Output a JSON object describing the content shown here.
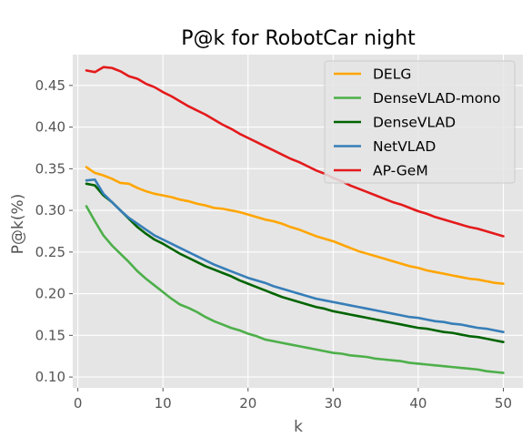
{
  "chart_data": {
    "type": "line",
    "title": "P@k for RobotCar night",
    "xlabel": "k",
    "ylabel": "P@k(%)",
    "xlim": [
      -0.6,
      52.3
    ],
    "ylim": [
      0.087,
      0.487
    ],
    "x_ticks": [
      0,
      10,
      20,
      30,
      40,
      50
    ],
    "y_ticks": [
      0.1,
      0.15,
      0.2,
      0.25,
      0.3,
      0.35,
      0.4,
      0.45
    ],
    "x_tick_labels": [
      "0",
      "10",
      "20",
      "30",
      "40",
      "50"
    ],
    "y_tick_labels": [
      "0.10",
      "0.15",
      "0.20",
      "0.25",
      "0.30",
      "0.35",
      "0.40",
      "0.45"
    ],
    "grid": true,
    "legend_position": "top-right",
    "x": [
      1,
      2,
      3,
      4,
      5,
      6,
      7,
      8,
      9,
      10,
      11,
      12,
      13,
      14,
      15,
      16,
      17,
      18,
      19,
      20,
      21,
      22,
      23,
      24,
      25,
      26,
      27,
      28,
      29,
      30,
      31,
      32,
      33,
      34,
      35,
      36,
      37,
      38,
      39,
      40,
      41,
      42,
      43,
      44,
      45,
      46,
      47,
      48,
      49,
      50
    ],
    "series": [
      {
        "name": "DELG",
        "color": "#ffa500",
        "values": [
          0.352,
          0.345,
          0.342,
          0.338,
          0.333,
          0.332,
          0.327,
          0.323,
          0.32,
          0.318,
          0.316,
          0.313,
          0.311,
          0.308,
          0.306,
          0.303,
          0.302,
          0.3,
          0.298,
          0.295,
          0.292,
          0.289,
          0.287,
          0.284,
          0.28,
          0.277,
          0.273,
          0.269,
          0.266,
          0.263,
          0.259,
          0.255,
          0.251,
          0.248,
          0.245,
          0.242,
          0.239,
          0.236,
          0.233,
          0.231,
          0.228,
          0.226,
          0.224,
          0.222,
          0.22,
          0.218,
          0.217,
          0.215,
          0.213,
          0.212
        ]
      },
      {
        "name": "DenseVLAD-mono",
        "color": "#4daf4a",
        "values": [
          0.305,
          0.287,
          0.27,
          0.258,
          0.248,
          0.238,
          0.227,
          0.218,
          0.21,
          0.202,
          0.194,
          0.187,
          0.183,
          0.178,
          0.172,
          0.167,
          0.163,
          0.159,
          0.156,
          0.152,
          0.149,
          0.145,
          0.143,
          0.141,
          0.139,
          0.137,
          0.135,
          0.133,
          0.131,
          0.129,
          0.128,
          0.126,
          0.125,
          0.124,
          0.122,
          0.121,
          0.12,
          0.119,
          0.117,
          0.116,
          0.115,
          0.114,
          0.113,
          0.112,
          0.111,
          0.11,
          0.109,
          0.107,
          0.106,
          0.105
        ]
      },
      {
        "name": "DenseVLAD",
        "color": "#006400",
        "values": [
          0.332,
          0.33,
          0.318,
          0.31,
          0.3,
          0.29,
          0.28,
          0.272,
          0.265,
          0.26,
          0.254,
          0.248,
          0.243,
          0.238,
          0.233,
          0.229,
          0.225,
          0.221,
          0.216,
          0.212,
          0.208,
          0.204,
          0.2,
          0.196,
          0.193,
          0.19,
          0.187,
          0.184,
          0.182,
          0.179,
          0.177,
          0.175,
          0.173,
          0.171,
          0.169,
          0.167,
          0.165,
          0.163,
          0.161,
          0.159,
          0.158,
          0.156,
          0.154,
          0.153,
          0.151,
          0.149,
          0.148,
          0.146,
          0.144,
          0.142
        ]
      },
      {
        "name": "NetVLAD",
        "color": "#377eb8",
        "values": [
          0.336,
          0.337,
          0.32,
          0.31,
          0.3,
          0.291,
          0.284,
          0.277,
          0.27,
          0.265,
          0.26,
          0.255,
          0.25,
          0.245,
          0.24,
          0.235,
          0.231,
          0.227,
          0.223,
          0.219,
          0.216,
          0.213,
          0.209,
          0.206,
          0.203,
          0.2,
          0.197,
          0.194,
          0.192,
          0.19,
          0.188,
          0.186,
          0.184,
          0.182,
          0.18,
          0.178,
          0.176,
          0.174,
          0.172,
          0.171,
          0.169,
          0.167,
          0.166,
          0.164,
          0.163,
          0.161,
          0.159,
          0.158,
          0.156,
          0.154
        ]
      },
      {
        "name": "AP-GeM",
        "color": "#e41a1c",
        "values": [
          0.468,
          0.466,
          0.472,
          0.471,
          0.467,
          0.461,
          0.458,
          0.452,
          0.448,
          0.442,
          0.437,
          0.431,
          0.425,
          0.42,
          0.415,
          0.409,
          0.403,
          0.398,
          0.392,
          0.387,
          0.382,
          0.377,
          0.372,
          0.367,
          0.362,
          0.358,
          0.353,
          0.348,
          0.344,
          0.339,
          0.335,
          0.33,
          0.326,
          0.322,
          0.318,
          0.314,
          0.31,
          0.307,
          0.303,
          0.299,
          0.296,
          0.292,
          0.289,
          0.286,
          0.283,
          0.28,
          0.278,
          0.275,
          0.272,
          0.269
        ]
      }
    ]
  }
}
